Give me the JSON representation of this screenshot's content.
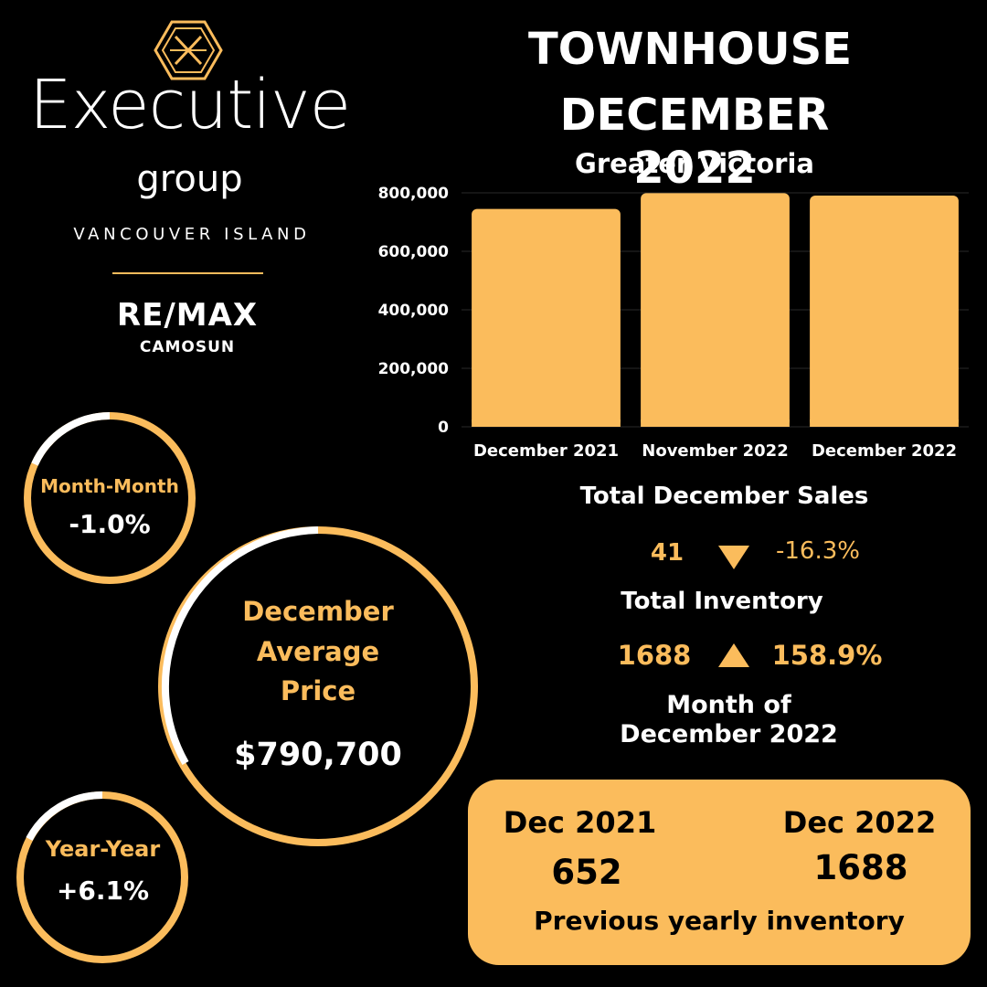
{
  "brand": {
    "name": "Executive",
    "group": "group",
    "region": "VANCOUVER ISLAND",
    "partner": "RE/MAX",
    "partner_sub": "CAMOSUN"
  },
  "title": {
    "line1": "TOWNHOUSE",
    "line2": "DECEMBER 2022",
    "subtitle": "Greater Victoria"
  },
  "colors": {
    "accent": "#fbbc5c",
    "background": "#000000",
    "text": "#ffffff"
  },
  "chart_data": {
    "type": "bar",
    "categories": [
      "December 2021",
      "November 2022",
      "December 2022"
    ],
    "values": [
      745000,
      798700,
      790700
    ],
    "ylim": [
      0,
      800000
    ],
    "yticks": [
      "0",
      "200,000",
      "400,000",
      "600,000",
      "800,000"
    ],
    "ytick_values": [
      0,
      200000,
      400000,
      600000,
      800000
    ],
    "grid": true,
    "color": "#fbbc5c"
  },
  "month_change": {
    "label": "Month-Month",
    "value": "-1.0%"
  },
  "year_change": {
    "label": "Year-Year",
    "value": "+6.1%"
  },
  "average_price": {
    "line1": "December",
    "line2": "Average",
    "line3": "Price",
    "value": "$790,700"
  },
  "sales": {
    "heading": "Total December Sales",
    "value": "41",
    "direction_icon": "down-triangle-icon",
    "change": "-16.3%"
  },
  "inventory": {
    "heading": "Total Inventory",
    "value": "1688",
    "direction_icon": "up-triangle-icon",
    "change": "158.9%"
  },
  "period": {
    "line1": "Month of",
    "line2": "December 2022"
  },
  "inventory_box": {
    "left_year": "Dec 2021",
    "left_value": "652",
    "right_year": "Dec 2022",
    "right_value": "1688",
    "caption": "Previous yearly inventory"
  }
}
